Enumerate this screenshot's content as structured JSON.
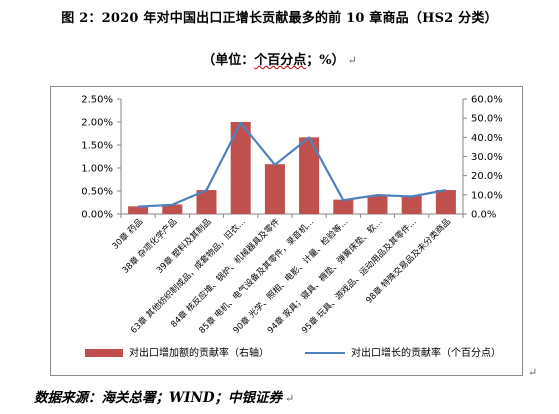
{
  "document": {
    "title": "图 2：2020 年对中国出口正增长贡献最多的前 10 章商品（HS2 分类）",
    "subtitle_prefix": "（单位：",
    "subtitle_unit": "个百分点",
    "subtitle_suffix": "；%）",
    "source": "数据来源：海关总署；WIND；中银证券"
  },
  "chart_data": {
    "type": "bar",
    "categories": [
      "30章 药品",
      "38章 杂项化学产品",
      "39章 塑料及其制品",
      "63章 其他纺织制成品，成套物品，旧衣…",
      "84章 核反应堆、锅炉、机械器具及零件",
      "85章 电机、电气设备及其零件，录音机…",
      "90章 光学、照相、电影、计量、检验等…",
      "94章 家具；寝具、褥垫、弹簧床垫、软…",
      "95章 玩具、游戏品、运动用品及其零件…",
      "98章 特殊交易品及未分类商品"
    ],
    "series": [
      {
        "name": "对出口增加额的贡献率（右轴）",
        "kind": "bar",
        "axis": "right",
        "color": "#c0504d",
        "values": [
          4,
          5,
          12.5,
          48,
          26,
          40,
          7.5,
          9.5,
          9.5,
          12.5
        ]
      },
      {
        "name": "对出口增长的贡献率（个百分点）",
        "kind": "line",
        "axis": "left",
        "color": "#4f81bd",
        "values": [
          0.16,
          0.2,
          0.52,
          1.98,
          1.07,
          1.66,
          0.3,
          0.41,
          0.38,
          0.52
        ]
      }
    ],
    "y_left": {
      "min": 0,
      "max": 2.5,
      "step": 0.5,
      "ticks": [
        "0.00%",
        "0.50%",
        "1.00%",
        "1.50%",
        "2.00%",
        "2.50%"
      ]
    },
    "y_right": {
      "min": 0,
      "max": 60,
      "step": 10,
      "ticks": [
        "0.0%",
        "10.0%",
        "20.0%",
        "30.0%",
        "40.0%",
        "50.0%",
        "60.0%"
      ]
    },
    "grid": false,
    "legend_position": "bottom"
  }
}
